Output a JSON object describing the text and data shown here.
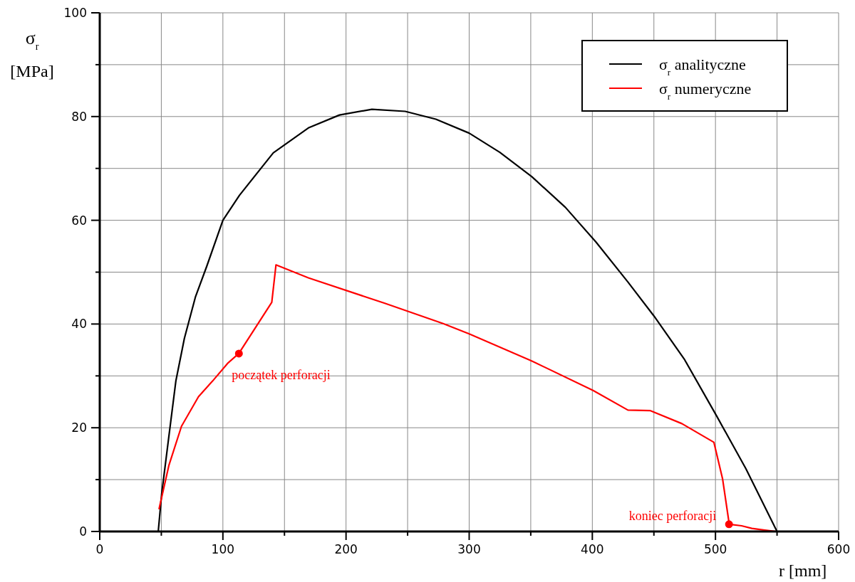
{
  "chart_data": {
    "type": "line",
    "xlabel": "r [mm]",
    "ylabel": "σ$_{r}$ [MPa]",
    "xlim": [
      0,
      600
    ],
    "ylim": [
      0,
      100
    ],
    "xticks": [
      0,
      {
        "value": 50,
        "label": null
      },
      100,
      {
        "value": 150,
        "label": null
      },
      200,
      {
        "value": 250,
        "label": null
      },
      300,
      {
        "value": 350,
        "label": null
      },
      400,
      {
        "value": 450,
        "label": null
      },
      500,
      {
        "value": 550,
        "label": null
      },
      600
    ],
    "yticks": [
      0,
      {
        "value": 10,
        "label": null
      },
      20,
      {
        "value": 30,
        "label": null
      },
      40,
      {
        "value": 50,
        "label": null
      },
      60,
      {
        "value": 70,
        "label": null
      },
      80,
      {
        "value": 90,
        "label": null
      },
      100
    ],
    "grid": true,
    "legend": "top right",
    "line_style": "solid",
    "marker": "none",
    "series": [
      {
        "name": "σ$_{r}$ analityczne",
        "color": "#000000",
        "x": [
          47.5,
          50.3,
          56,
          61.8,
          68.7,
          77.8,
          87,
          100,
          113.4,
          140.9,
          169.4,
          194.7,
          221,
          248,
          272.9,
          300,
          324.9,
          350.9,
          378.1,
          403,
          428.9,
          450.2,
          475,
          501.1,
          524.7,
          550
        ],
        "values": [
          0,
          7.3,
          18.1,
          29,
          37.2,
          45.3,
          51.2,
          60,
          64.8,
          73,
          77.8,
          80.3,
          81.4,
          81,
          79.5,
          76.8,
          73.1,
          68.4,
          62.5,
          55.8,
          48.1,
          41.5,
          33.1,
          22.2,
          12.1,
          0
        ]
      },
      {
        "name": "σ$_{r}$ numeryczne",
        "color": "#ff0000",
        "x": [
          48.1,
          56.1,
          66.4,
          80.2,
          91.6,
          104.2,
          112.9,
          139.7,
          143.1,
          169.4,
          231.5,
          278.8,
          300,
          349.7,
          400.6,
          428.9,
          447.2,
          472.7,
          498.7,
          505.8,
          511.2,
          521.2,
          529.5,
          539,
          549.5
        ],
        "values": [
          4.3,
          12.7,
          20.3,
          26,
          29,
          32.5,
          34.3,
          44.2,
          51.4,
          48.9,
          44,
          40.1,
          38.1,
          33,
          27.2,
          23.4,
          23.3,
          20.8,
          17.2,
          10.1,
          1.4,
          1.1,
          0.6,
          0.3,
          0
        ]
      }
    ],
    "annotations": [
      {
        "text": "początek perforacji",
        "x": 113,
        "y": 34.3
      },
      {
        "text": "koniec perforacji",
        "x": 511,
        "y": 1.4
      }
    ]
  }
}
